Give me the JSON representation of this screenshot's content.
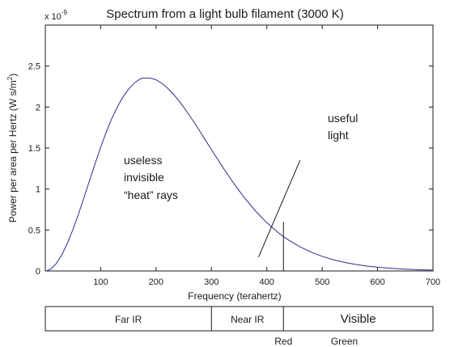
{
  "chart_data": {
    "type": "line",
    "title": "Spectrum from a light bulb filament (3000 K)",
    "xlabel": "Frequency (terahertz)",
    "ylabel_pre": "Power per area per Hertz (W s/m",
    "ylabel_sup": "2",
    "ylabel_post": ")",
    "y_multiplier_base": "x 10",
    "y_multiplier_exp": "-9",
    "xlim": [
      0,
      700
    ],
    "ylim": [
      0,
      3.0
    ],
    "x_ticks": [
      100,
      200,
      300,
      400,
      500,
      600,
      700
    ],
    "y_ticks": [
      0,
      0.5,
      1,
      1.5,
      2,
      2.5
    ],
    "y_tick_labels": [
      "0",
      "0.5",
      "1",
      "1.5",
      "2",
      "2.5"
    ],
    "grid": false,
    "temperature_K": 3000,
    "series": [
      {
        "x": [
          2,
          10,
          20,
          30,
          40,
          50,
          60,
          70,
          80,
          90,
          100,
          110,
          120,
          130,
          140,
          150,
          160,
          170,
          176,
          180,
          190,
          200,
          210,
          220,
          230,
          240,
          250,
          260,
          270,
          280,
          290,
          300,
          320,
          340,
          360,
          380,
          400,
          420,
          430,
          440,
          460,
          480,
          500,
          520,
          540,
          560,
          580,
          600,
          620,
          640,
          660,
          680,
          700
        ],
        "y": [
          0.001,
          0.024,
          0.092,
          0.199,
          0.34,
          0.508,
          0.697,
          0.899,
          1.106,
          1.312,
          1.51,
          1.694,
          1.859,
          2.0,
          2.12,
          2.215,
          2.29,
          2.338,
          2.353,
          2.353,
          2.352,
          2.333,
          2.291,
          2.235,
          2.166,
          2.087,
          1.998,
          1.901,
          1.8,
          1.695,
          1.587,
          1.48,
          1.27,
          1.071,
          0.889,
          0.728,
          0.589,
          0.471,
          0.419,
          0.374,
          0.294,
          0.23,
          0.178,
          0.137,
          0.105,
          0.08,
          0.061,
          0.046,
          0.034,
          0.026,
          0.019,
          0.014,
          0.011
        ]
      }
    ],
    "red_marker": {
      "x": 430,
      "y": 0.6
    },
    "annotations": [
      {
        "lines": [
          "useless",
          "invisible",
          "“heat” rays"
        ]
      },
      {
        "lines": [
          "useful",
          "light"
        ],
        "arrow_from": [
          460,
          1.35
        ],
        "arrow_to": [
          385,
          0.17
        ]
      }
    ]
  },
  "bands": [
    {
      "label": "Far IR",
      "start": 0,
      "end": 300
    },
    {
      "label": "Near IR",
      "start": 300,
      "end": 430
    },
    {
      "label": "Visible",
      "start": 430,
      "end": 700
    }
  ],
  "band_markers": [
    {
      "label": "Red",
      "x": 430
    },
    {
      "label": "Green",
      "x": 540
    }
  ]
}
